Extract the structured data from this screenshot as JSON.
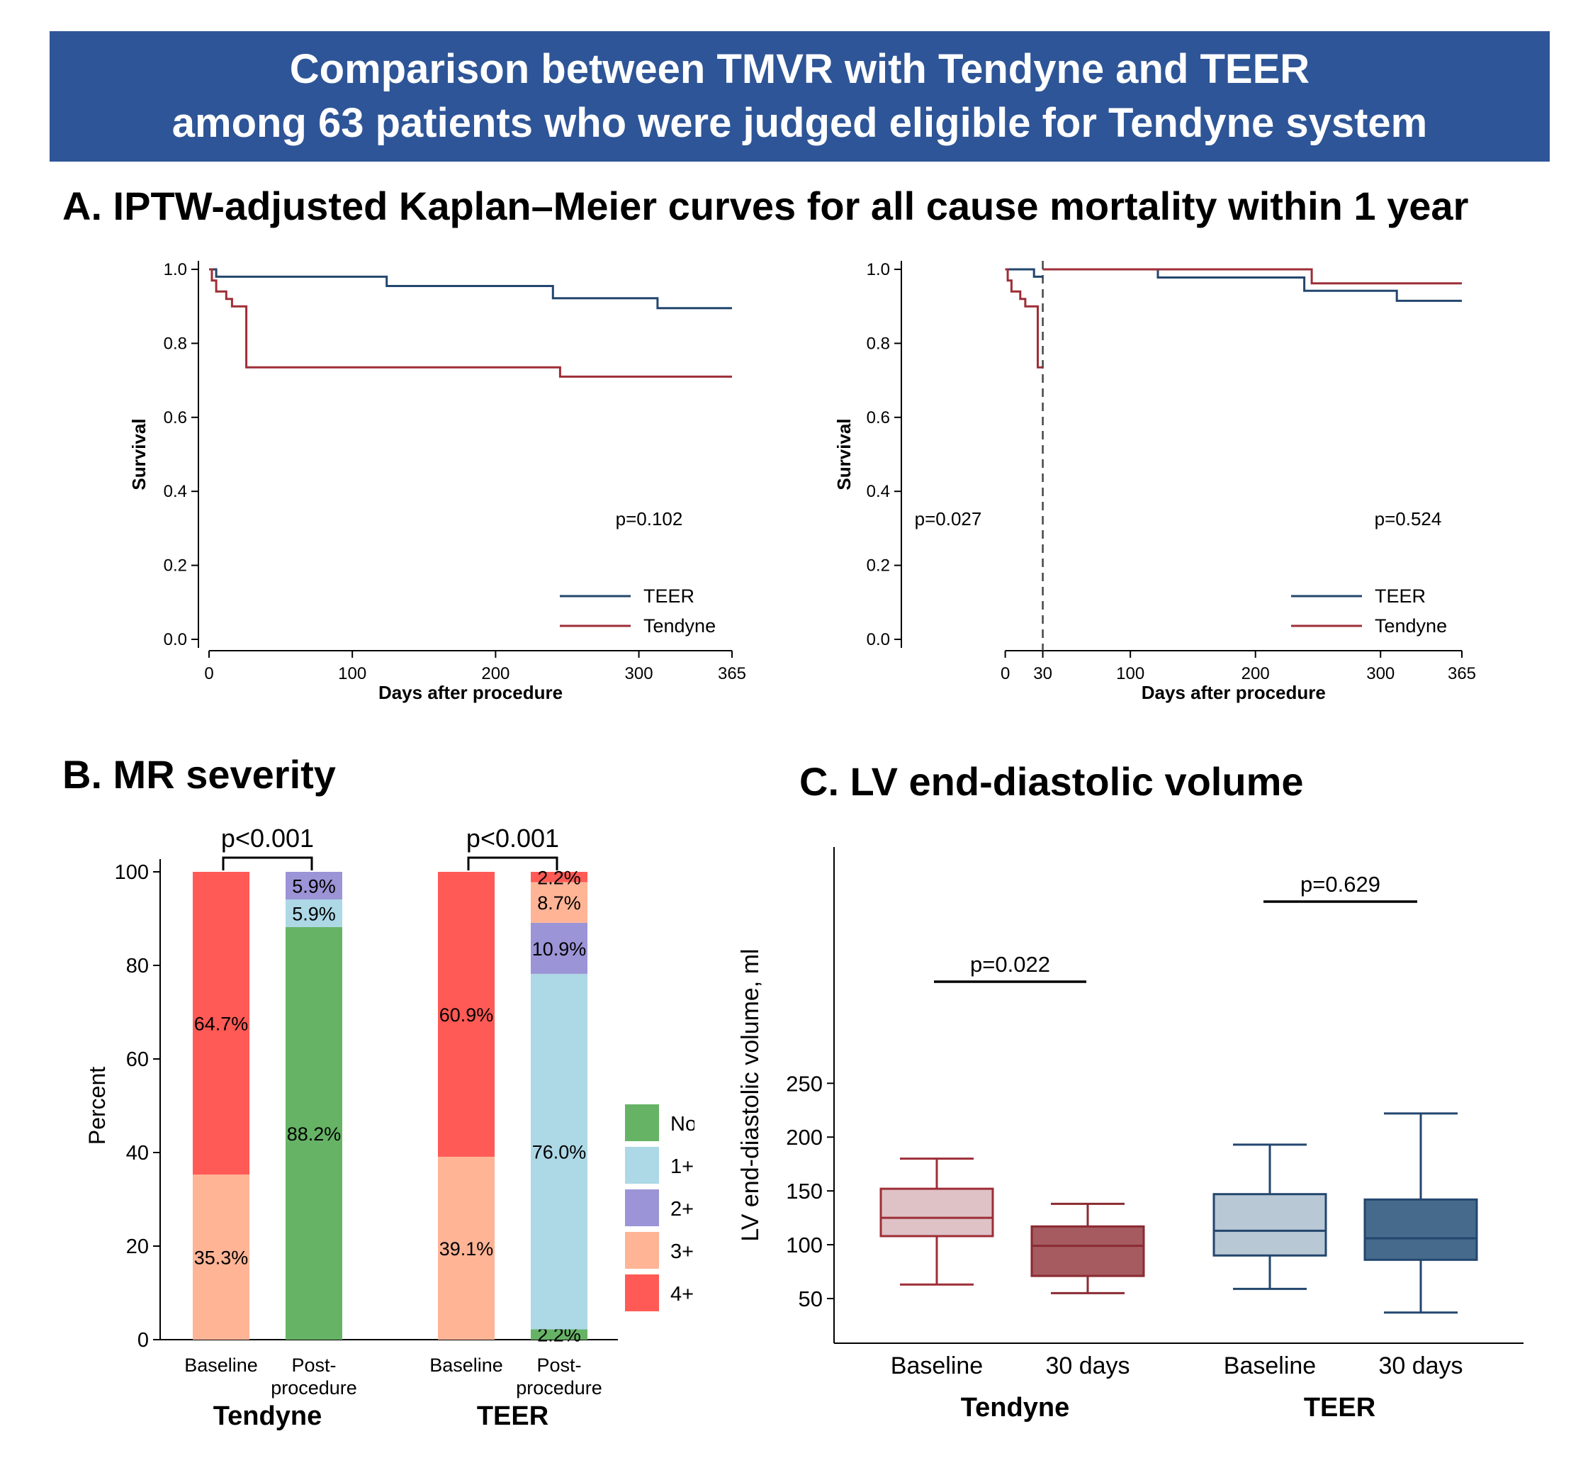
{
  "banner": {
    "line1": "Comparison between TMVR with Tendyne and TEER",
    "line2": "among 63 patients who were judged eligible for Tendyne system"
  },
  "colors": {
    "banner": "#2E5597",
    "teer": "#23466E",
    "tendyne": "#9E2E37"
  },
  "panel_a": {
    "title": "A. IPTW-adjusted Kaplan–Meier curves for all cause mortality within 1 year"
  },
  "panel_b": {
    "title": "B. MR severity"
  },
  "panel_c": {
    "title": "C. LV end-diastolic volume"
  },
  "chart_data": [
    {
      "id": "km_left",
      "type": "line",
      "step": true,
      "ylabel": "Survival",
      "xlabel": "Days after procedure",
      "xlim": [
        0,
        365
      ],
      "ylim": [
        0,
        1
      ],
      "xticks": [
        0,
        100,
        200,
        300,
        365
      ],
      "yticks": [
        "0.0",
        "0.2",
        "0.4",
        "0.6",
        "0.8",
        "1.0"
      ],
      "annotations": [
        "p=0.102"
      ],
      "legend_position": "bottom-right",
      "series": [
        {
          "name": "TEER",
          "color": "#23466E",
          "points": [
            [
              0,
              1.0
            ],
            [
              5,
              1.0
            ],
            [
              5,
              0.98
            ],
            [
              124,
              0.98
            ],
            [
              124,
              0.955
            ],
            [
              240,
              0.955
            ],
            [
              240,
              0.922
            ],
            [
              313,
              0.922
            ],
            [
              313,
              0.895
            ],
            [
              365,
              0.895
            ]
          ]
        },
        {
          "name": "Tendyne",
          "color": "#9E2E37",
          "points": [
            [
              0,
              1.0
            ],
            [
              2,
              1.0
            ],
            [
              2,
              0.97
            ],
            [
              5,
              0.97
            ],
            [
              5,
              0.94
            ],
            [
              12,
              0.94
            ],
            [
              12,
              0.92
            ],
            [
              16,
              0.92
            ],
            [
              16,
              0.9
            ],
            [
              26,
              0.9
            ],
            [
              26,
              0.735
            ],
            [
              245,
              0.735
            ],
            [
              245,
              0.71
            ],
            [
              365,
              0.71
            ]
          ]
        }
      ]
    },
    {
      "id": "km_right",
      "type": "line",
      "step": true,
      "landmark_day": 30,
      "ylabel": "Survival",
      "xlabel": "Days after procedure",
      "xlim": [
        0,
        365
      ],
      "ylim": [
        0,
        1
      ],
      "xticks": [
        0,
        30,
        100,
        200,
        300,
        365
      ],
      "yticks": [
        "0.0",
        "0.2",
        "0.4",
        "0.6",
        "0.8",
        "1.0"
      ],
      "annotations": [
        "p=0.027",
        "p=0.524"
      ],
      "legend_position": "bottom-right",
      "series": [
        {
          "name": "TEER",
          "color": "#23466E",
          "segments": [
            [
              [
                0,
                1.0
              ],
              [
                23,
                1.0
              ],
              [
                23,
                0.98
              ],
              [
                30,
                0.98
              ]
            ],
            [
              [
                30,
                1.0
              ],
              [
                122,
                1.0
              ],
              [
                122,
                0.978
              ],
              [
                239,
                0.978
              ],
              [
                239,
                0.942
              ],
              [
                313,
                0.942
              ],
              [
                313,
                0.915
              ],
              [
                365,
                0.915
              ]
            ]
          ]
        },
        {
          "name": "Tendyne",
          "color": "#9E2E37",
          "segments": [
            [
              [
                0,
                1.0
              ],
              [
                2,
                1.0
              ],
              [
                2,
                0.97
              ],
              [
                5,
                0.97
              ],
              [
                5,
                0.94
              ],
              [
                12,
                0.94
              ],
              [
                12,
                0.92
              ],
              [
                16,
                0.92
              ],
              [
                16,
                0.9
              ],
              [
                26,
                0.9
              ],
              [
                26,
                0.735
              ],
              [
                30,
                0.735
              ]
            ],
            [
              [
                30,
                1.0
              ],
              [
                245,
                1.0
              ],
              [
                245,
                0.962
              ],
              [
                365,
                0.962
              ]
            ]
          ]
        }
      ]
    },
    {
      "id": "mr_severity",
      "type": "bar",
      "stacked": true,
      "ylabel": "Percent",
      "ylim": [
        0,
        100
      ],
      "yticks": [
        "0",
        "20",
        "40",
        "60",
        "80",
        "100"
      ],
      "legend_position": "right",
      "legend": [
        {
          "label": "None",
          "color": "#66B366"
        },
        {
          "label": "1+",
          "color": "#ADD8E6"
        },
        {
          "label": "2+",
          "color": "#9B94D6"
        },
        {
          "label": "3+",
          "color": "#FFB496"
        },
        {
          "label": "4+",
          "color": "#FF5A55"
        }
      ],
      "categories": [
        {
          "label": "Baseline",
          "group": "Tendyne"
        },
        {
          "label": "Post-\nprocedure",
          "group": "Tendyne"
        },
        {
          "label": "Baseline",
          "group": "TEER"
        },
        {
          "label": "Post-\nprocedure",
          "group": "TEER"
        }
      ],
      "groups": [
        "Tendyne",
        "TEER"
      ],
      "series": [
        {
          "name": "None",
          "values": [
            0,
            88.2,
            0,
            2.2
          ],
          "labels": [
            "",
            "88.2%",
            "",
            "2.2%"
          ]
        },
        {
          "name": "1+",
          "values": [
            0,
            5.9,
            0,
            76.0
          ],
          "labels": [
            "",
            "5.9%",
            "",
            "76.0%"
          ]
        },
        {
          "name": "2+",
          "values": [
            0,
            5.9,
            0,
            10.9
          ],
          "labels": [
            "",
            "5.9%",
            "",
            "10.9%"
          ]
        },
        {
          "name": "3+",
          "values": [
            35.3,
            0,
            39.1,
            8.7
          ],
          "labels": [
            "35.3%",
            "",
            "39.1%",
            "8.7%"
          ]
        },
        {
          "name": "4+",
          "values": [
            64.7,
            0,
            60.9,
            2.2
          ],
          "labels": [
            "64.7%",
            "",
            "60.9%",
            "2.2%"
          ]
        }
      ],
      "annotations": [
        "p<0.001",
        "p<0.001"
      ]
    },
    {
      "id": "lv_edv",
      "type": "box",
      "ylabel": "LV end-diastolic volume, ml",
      "ylim": [
        28,
        250
      ],
      "yticks": [
        "50",
        "100",
        "150",
        "200",
        "250"
      ],
      "groups": [
        "Tendyne",
        "TEER"
      ],
      "boxes": [
        {
          "label": "Baseline",
          "group": "Tendyne",
          "whisker_low": 63,
          "q1": 108,
          "median": 125,
          "q3": 152,
          "whisker_high": 180,
          "fill": "#DEC2C6",
          "stroke": "#9E2E37"
        },
        {
          "label": "30 days",
          "group": "Tendyne",
          "whisker_low": 55,
          "q1": 71,
          "median": 99,
          "q3": 117,
          "whisker_high": 138,
          "fill": "#A55B60",
          "stroke": "#8B2A32"
        },
        {
          "label": "Baseline",
          "group": "TEER",
          "whisker_low": 59,
          "q1": 90,
          "median": 113,
          "q3": 147,
          "whisker_high": 193,
          "fill": "#B8C8D4",
          "stroke": "#23466E"
        },
        {
          "label": "30 days",
          "group": "TEER",
          "whisker_low": 37,
          "q1": 86,
          "median": 106,
          "q3": 142,
          "whisker_high": 222,
          "fill": "#466A8B",
          "stroke": "#23466E"
        }
      ],
      "annotations": [
        "p=0.022",
        "p=0.629"
      ]
    }
  ]
}
